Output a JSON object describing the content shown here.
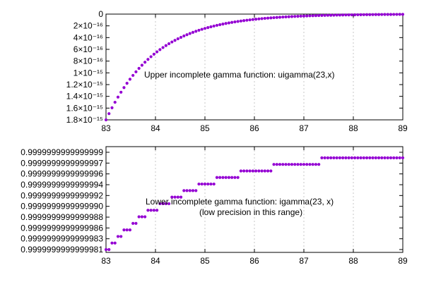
{
  "chart_data": [
    {
      "type": "scatter",
      "x_range": [
        83,
        89
      ],
      "x_ticks": [
        "83",
        "84",
        "85",
        "86",
        "87",
        "88",
        "89"
      ],
      "y_range": [
        0,
        1.8e-15
      ],
      "y_reversed": true,
      "y_ticks": [
        {
          "value": 0,
          "label": "0"
        },
        {
          "value": 2e-16,
          "label": "2×10⁻¹⁶"
        },
        {
          "value": 4e-16,
          "label": "4×10⁻¹⁶"
        },
        {
          "value": 6e-16,
          "label": "6×10⁻¹⁶"
        },
        {
          "value": 8e-16,
          "label": "8×10⁻¹⁶"
        },
        {
          "value": 1e-15,
          "label": "1×10⁻¹⁵"
        },
        {
          "value": 1.2e-15,
          "label": "1.2×10⁻¹⁵"
        },
        {
          "value": 1.4e-15,
          "label": "1.4×10⁻¹⁵"
        },
        {
          "value": 1.6e-15,
          "label": "1.6×10⁻¹⁵"
        },
        {
          "value": 1.8e-15,
          "label": "1.8×10⁻¹⁵"
        }
      ],
      "grid": "vertical dashed",
      "annotation": [
        "Upper incomplete gamma function:      uigamma(23,x)"
      ],
      "series_color": "#9400d3",
      "points": {
        "x_start": 83.0,
        "x_step": 0.0606,
        "count": 100,
        "model": "exponential decay",
        "y_at_x_start": 1.8e-15,
        "decay_rate": 1.0
      }
    },
    {
      "type": "scatter",
      "x_range": [
        83,
        89
      ],
      "x_ticks": [
        "83",
        "84",
        "85",
        "86",
        "87",
        "88",
        "89"
      ],
      "y_range": [
        0.999999999999998,
        1.0
      ],
      "y_ticks": [
        {
          "value": 0.9999999999999999,
          "label": "0.9999999999999999"
        },
        {
          "value": 0.9999999999999997,
          "label": "0.9999999999999997"
        },
        {
          "value": 0.9999999999999996,
          "label": "0.9999999999999996"
        },
        {
          "value": 0.9999999999999994,
          "label": "0.9999999999999994"
        },
        {
          "value": 0.9999999999999992,
          "label": "0.9999999999999992"
        },
        {
          "value": 0.999999999999999,
          "label": "0.9999999999999990"
        },
        {
          "value": 0.9999999999999988,
          "label": "0.9999999999999988"
        },
        {
          "value": 0.9999999999999986,
          "label": "0.9999999999999986"
        },
        {
          "value": 0.9999999999999983,
          "label": "0.9999999999999983"
        },
        {
          "value": 0.9999999999999981,
          "label": "0.9999999999999981"
        }
      ],
      "grid": "vertical dashed",
      "annotation": [
        "Lower incomplete gamma function:      igamma(23, x)",
        "(low precision in this range)"
      ],
      "series_color": "#9400d3",
      "points": {
        "x_start": 83.0,
        "x_step": 0.0606,
        "count": 100,
        "model": "stepwise approach to 1"
      }
    }
  ]
}
